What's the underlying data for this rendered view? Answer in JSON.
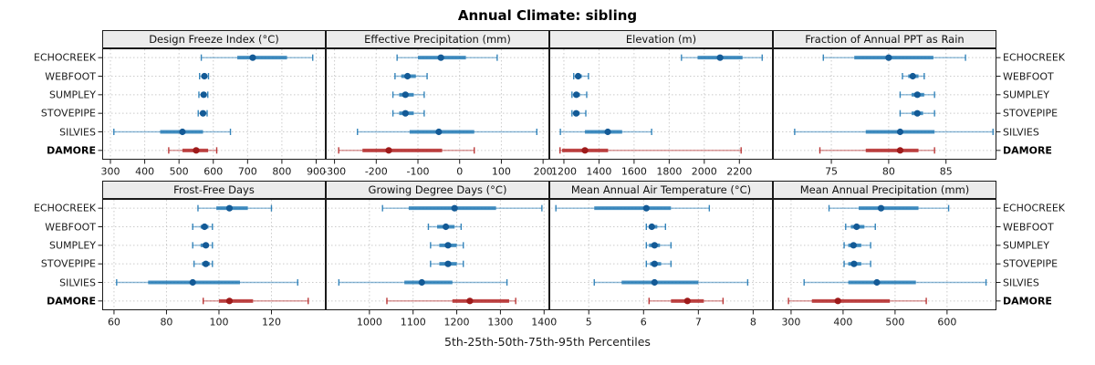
{
  "title": "Annual Climate: sibling",
  "caption": "5th-25th-50th-75th-95th Percentiles",
  "colors": {
    "blue": "#1F78B4",
    "blue_dot": "#135A96",
    "red": "#B22222",
    "red_dot": "#9E1A1A",
    "strip_bg": "#ECECEC",
    "panel_border": "#1A1A1A",
    "grid": "#CBCBCB",
    "text": "#1A1A1A"
  },
  "chart_data": {
    "type": "dot-interval",
    "percentile_levels": [
      5,
      25,
      50,
      75,
      95
    ],
    "sites": [
      "ECHOCREEK",
      "WEBFOOT",
      "SUMPLEY",
      "STOVEPIPE",
      "SILVIES",
      "DAMORE"
    ],
    "highlight_site": "DAMORE",
    "legend_note": "rows repeated on left and right axes; highlighted site drawn in red",
    "panels": [
      {
        "title": "Design Freeze Index (°C)",
        "row": 0,
        "col": 0,
        "xmin": 276,
        "xmax": 928,
        "ticks": [
          300,
          400,
          500,
          600,
          700,
          800,
          900
        ],
        "values": {
          "ECHOCREEK": [
            565,
            670,
            715,
            815,
            890
          ],
          "WEBFOOT": [
            560,
            569,
            574,
            580,
            586
          ],
          "SUMPLEY": [
            558,
            567,
            572,
            578,
            584
          ],
          "STOVEPIPE": [
            556,
            565,
            570,
            576,
            582
          ],
          "SILVIES": [
            310,
            445,
            510,
            570,
            650
          ],
          "DAMORE": [
            470,
            510,
            550,
            585,
            610
          ]
        }
      },
      {
        "title": "Effective Precipitation (mm)",
        "row": 0,
        "col": 1,
        "xmin": -321,
        "xmax": 215,
        "ticks": [
          -300,
          -200,
          -100,
          0,
          100,
          200
        ],
        "values": {
          "ECHOCREEK": [
            -150,
            -100,
            -45,
            15,
            90
          ],
          "WEBFOOT": [
            -155,
            -140,
            -125,
            -105,
            -78
          ],
          "SUMPLEY": [
            -160,
            -145,
            -130,
            -110,
            -85
          ],
          "STOVEPIPE": [
            -160,
            -145,
            -130,
            -110,
            -85
          ],
          "SILVIES": [
            -245,
            -120,
            -50,
            35,
            185
          ],
          "DAMORE": [
            -290,
            -233,
            -170,
            -42,
            35
          ]
        }
      },
      {
        "title": "Elevation (m)",
        "row": 0,
        "col": 2,
        "xmin": 1117,
        "xmax": 2391,
        "ticks": [
          1200,
          1400,
          1600,
          1800,
          2000,
          2200
        ],
        "values": {
          "ECHOCREEK": [
            1870,
            1962,
            2090,
            2218,
            2330
          ],
          "WEBFOOT": [
            1256,
            1268,
            1281,
            1302,
            1340
          ],
          "SUMPLEY": [
            1246,
            1258,
            1271,
            1292,
            1330
          ],
          "STOVEPIPE": [
            1246,
            1258,
            1270,
            1290,
            1325
          ],
          "SILVIES": [
            1180,
            1320,
            1450,
            1532,
            1700
          ],
          "DAMORE": [
            1178,
            1190,
            1320,
            1452,
            2210
          ]
        }
      },
      {
        "title": "Fraction of Annual PPT as Rain",
        "row": 0,
        "col": 3,
        "xmin": 69.9,
        "xmax": 89.4,
        "ticks": [
          75,
          80,
          85
        ],
        "values": {
          "ECHOCREEK": [
            74.3,
            77.0,
            80.0,
            83.9,
            86.7
          ],
          "WEBFOOT": [
            81.2,
            81.7,
            82.1,
            82.6,
            83.1
          ],
          "SUMPLEY": [
            81.0,
            82.0,
            82.5,
            83.1,
            84.0
          ],
          "STOVEPIPE": [
            81.0,
            82.0,
            82.5,
            83.0,
            84.0
          ],
          "SILVIES": [
            71.8,
            78.0,
            81.0,
            84.0,
            89.1
          ],
          "DAMORE": [
            74.0,
            78.0,
            81.0,
            82.6,
            84.0
          ]
        }
      },
      {
        "title": "Frost-Free Days",
        "row": 1,
        "col": 0,
        "xmin": 55.5,
        "xmax": 140.7,
        "ticks": [
          60,
          80,
          100,
          120
        ],
        "values": {
          "ECHOCREEK": [
            92,
            99,
            104,
            111,
            120
          ],
          "WEBFOOT": [
            90,
            93,
            94.5,
            96,
            97.5
          ],
          "SUMPLEY": [
            90,
            93,
            95,
            96,
            97.5
          ],
          "STOVEPIPE": [
            90.5,
            93.5,
            95,
            96.5,
            97.5
          ],
          "SILVIES": [
            61,
            73,
            90,
            108,
            130
          ],
          "DAMORE": [
            94,
            100,
            104,
            113,
            134
          ]
        }
      },
      {
        "title": "Growing Degree Days (°C)",
        "row": 1,
        "col": 1,
        "xmin": 900,
        "xmax": 1412,
        "ticks": [
          1000,
          1100,
          1200,
          1300,
          1400
        ],
        "values": {
          "ECHOCREEK": [
            1030,
            1090,
            1195,
            1290,
            1395
          ],
          "WEBFOOT": [
            1135,
            1155,
            1175,
            1195,
            1210
          ],
          "SUMPLEY": [
            1140,
            1160,
            1180,
            1200,
            1215
          ],
          "STOVEPIPE": [
            1140,
            1160,
            1180,
            1200,
            1215
          ],
          "SILVIES": [
            930,
            1080,
            1120,
            1190,
            1315
          ],
          "DAMORE": [
            1040,
            1190,
            1230,
            1320,
            1335
          ]
        }
      },
      {
        "title": "Mean Annual Air Temperature (°C)",
        "row": 1,
        "col": 2,
        "xmin": 4.28,
        "xmax": 8.36,
        "ticks": [
          5,
          6,
          7,
          8
        ],
        "values": {
          "ECHOCREEK": [
            4.4,
            5.1,
            6.05,
            6.5,
            7.2
          ],
          "WEBFOOT": [
            6.05,
            6.1,
            6.15,
            6.25,
            6.4
          ],
          "SUMPLEY": [
            6.05,
            6.1,
            6.2,
            6.3,
            6.5
          ],
          "STOVEPIPE": [
            6.05,
            6.12,
            6.2,
            6.32,
            6.5
          ],
          "SILVIES": [
            5.1,
            5.6,
            6.2,
            7.0,
            7.9
          ],
          "DAMORE": [
            6.1,
            6.5,
            6.8,
            7.1,
            7.45
          ]
        }
      },
      {
        "title": "Mean Annual Precipitation (mm)",
        "row": 1,
        "col": 3,
        "xmin": 265,
        "xmax": 695,
        "ticks": [
          300,
          400,
          500,
          600
        ],
        "values": {
          "ECHOCREEK": [
            373,
            430,
            473,
            545,
            603
          ],
          "WEBFOOT": [
            405,
            415,
            426,
            441,
            462
          ],
          "SUMPLEY": [
            402,
            410,
            420,
            435,
            453
          ],
          "STOVEPIPE": [
            402,
            410,
            421,
            435,
            453
          ],
          "SILVIES": [
            325,
            410,
            465,
            540,
            675
          ],
          "DAMORE": [
            295,
            340,
            390,
            490,
            560
          ]
        }
      }
    ]
  }
}
